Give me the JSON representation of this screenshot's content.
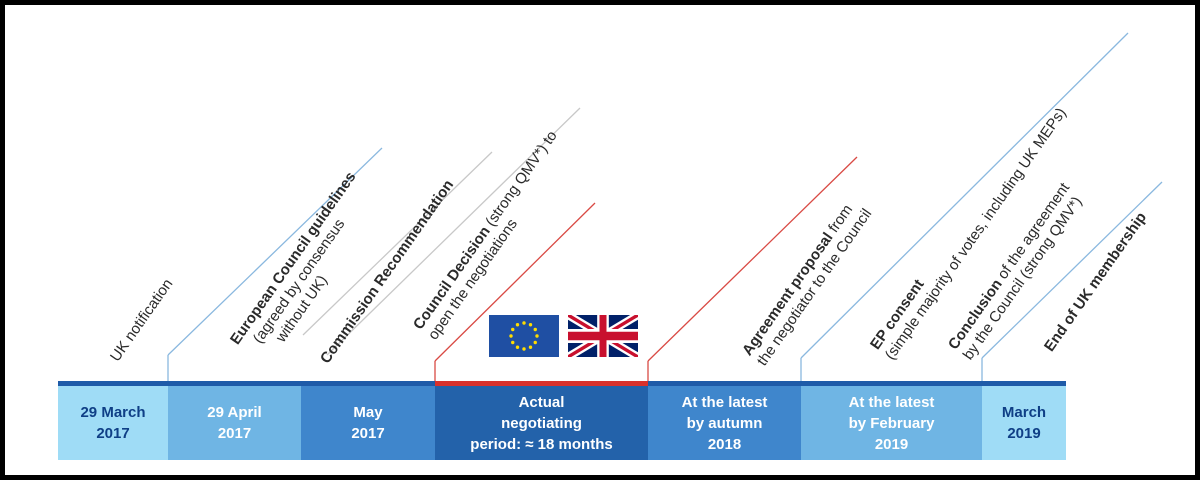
{
  "events": [
    {
      "parts": [
        {
          "text": "UK notification",
          "bold": false
        }
      ]
    },
    {
      "parts": [
        {
          "text": "European Council guidelines",
          "bold": true
        },
        {
          "text": "(agreed by consensus",
          "bold": false
        },
        {
          "text": "without UK)",
          "bold": false
        }
      ]
    },
    {
      "parts": [
        {
          "text": "Commission Recommendation",
          "bold": true
        }
      ]
    },
    {
      "parts": [
        {
          "text": "Council Decision",
          "bold": true,
          "suffix": " (strong QMV*) to"
        },
        {
          "text": "open the negotiations",
          "bold": false
        }
      ]
    },
    {
      "parts": [
        {
          "text": "Agreement proposal",
          "bold": true,
          "suffix": " from"
        },
        {
          "text": "the negotiator to the Council",
          "bold": false
        }
      ]
    },
    {
      "parts": [
        {
          "text": "EP consent",
          "bold": true
        },
        {
          "text": "(simple majority of votes, including UK MEPs)",
          "bold": false
        }
      ]
    },
    {
      "parts": [
        {
          "text": "Conclusion",
          "bold": true,
          "suffix": " of the agreement"
        },
        {
          "text": "by the Council (strong QMV*)",
          "bold": false
        }
      ]
    },
    {
      "parts": [
        {
          "text": "End of  UK membership",
          "bold": true
        }
      ]
    }
  ],
  "periods": [
    {
      "lines": [
        "29 March",
        "2017"
      ]
    },
    {
      "lines": [
        "29 April",
        "2017"
      ]
    },
    {
      "lines": [
        "May",
        "2017"
      ]
    },
    {
      "lines": [
        "Actual",
        "negotiating",
        "period: ≈ 18 months"
      ]
    },
    {
      "lines": [
        "At the latest",
        "by autumn",
        "2018"
      ]
    },
    {
      "lines": [
        "At the latest",
        "by February",
        "2019"
      ]
    },
    {
      "lines": [
        "March",
        "2019"
      ]
    }
  ],
  "flags": {
    "eu": "eu-flag",
    "uk": "uk-flag"
  },
  "colors": {
    "light_blue": "#9fdcf6",
    "mid_blue": "#6fb5e4",
    "steel_blue": "#3f86cc",
    "dark_blue": "#2362aa",
    "bar_blue": "#1f5ba8",
    "accent_red": "#d8312c",
    "leader_blue": "#8ab8df",
    "leader_grey": "#c8c8c8",
    "leader_red": "#d94a44"
  }
}
